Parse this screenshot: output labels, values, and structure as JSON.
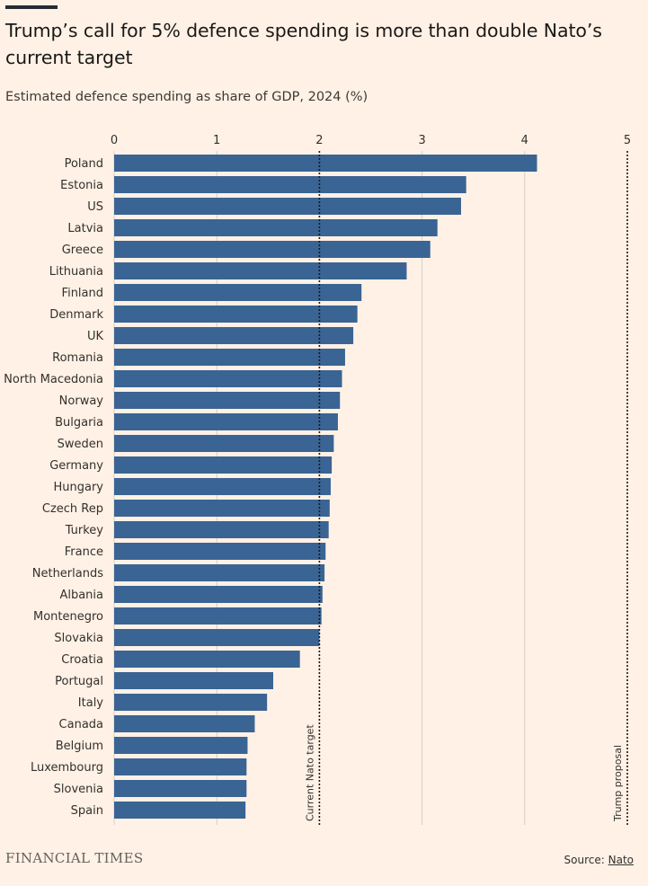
{
  "header": {
    "title": "Trump’s call for 5% defence spending is more than double Nato’s current target",
    "subtitle": "Estimated defence spending as share of GDP, 2024 (%)"
  },
  "footer": {
    "logo": "FINANCIAL TIMES",
    "source_prefix": "Source: ",
    "source_link": "Nato"
  },
  "colors": {
    "background": "#fff1e5",
    "bar": "#3a6494",
    "gridline": "#d6cec6",
    "reference_line": "#1a1817",
    "text": "#33302e"
  },
  "chart_data": {
    "type": "bar",
    "orientation": "horizontal",
    "title": "Trump’s call for 5% defence spending is more than double Nato’s current target",
    "subtitle": "Estimated defence spending as share of GDP, 2024 (%)",
    "xlabel": "",
    "ylabel": "",
    "xlim": [
      0,
      5
    ],
    "xticks": [
      0,
      1,
      2,
      3,
      4,
      5
    ],
    "grid": true,
    "categories": [
      "Poland",
      "Estonia",
      "US",
      "Latvia",
      "Greece",
      "Lithuania",
      "Finland",
      "Denmark",
      "UK",
      "Romania",
      "North Macedonia",
      "Norway",
      "Bulgaria",
      "Sweden",
      "Germany",
      "Hungary",
      "Czech Rep",
      "Turkey",
      "France",
      "Netherlands",
      "Albania",
      "Montenegro",
      "Slovakia",
      "Croatia",
      "Portugal",
      "Italy",
      "Canada",
      "Belgium",
      "Luxembourg",
      "Slovenia",
      "Spain"
    ],
    "values": [
      4.12,
      3.43,
      3.38,
      3.15,
      3.08,
      2.85,
      2.41,
      2.37,
      2.33,
      2.25,
      2.22,
      2.2,
      2.18,
      2.14,
      2.12,
      2.11,
      2.1,
      2.09,
      2.06,
      2.05,
      2.03,
      2.02,
      2.0,
      1.81,
      1.55,
      1.49,
      1.37,
      1.3,
      1.29,
      1.29,
      1.28
    ],
    "reference_lines": [
      {
        "value": 2,
        "label": "Current Nato target"
      },
      {
        "value": 5,
        "label": "Trump proposal"
      }
    ]
  }
}
